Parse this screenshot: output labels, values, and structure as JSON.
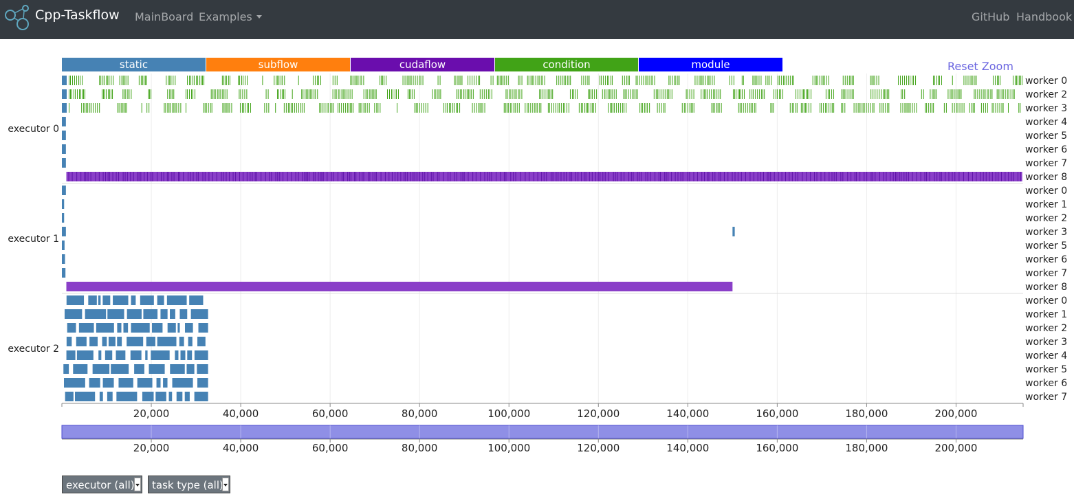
{
  "navbar": {
    "brand": "Cpp-Taskflow",
    "links": [
      "MainBoard",
      "Examples",
      "GitHub",
      "Handbook"
    ],
    "logo_icon": "network-nodes-logo"
  },
  "legend": [
    {
      "label": "static",
      "color": "#4682b4"
    },
    {
      "label": "subflow",
      "color": "#ff7f0e"
    },
    {
      "label": "cudaflow",
      "color": "#6a0dad"
    },
    {
      "label": "condition",
      "color": "#41a317"
    },
    {
      "label": "module",
      "color": "#0000ff"
    }
  ],
  "reset_zoom": "Reset Zoom",
  "controls": {
    "executor_select": "executor (all)",
    "task_type_select": "task type (all)"
  },
  "chart_data": {
    "type": "timeline",
    "x_ticks": [
      "20,000",
      "40,000",
      "60,000",
      "80,000",
      "100,000",
      "120,000",
      "140,000",
      "160,000",
      "180,000",
      "200,000"
    ],
    "xlim": [
      0,
      215000
    ],
    "grid": true,
    "executors": [
      {
        "label": "executor 0",
        "workers": [
          "worker 0",
          "worker 2",
          "worker 3",
          "worker 4",
          "worker 5",
          "worker 6",
          "worker 7",
          "worker 8"
        ],
        "segments": [
          {
            "worker": 0,
            "start": 0,
            "end": 215000,
            "type": "condition",
            "pattern": "dense-thin"
          },
          {
            "worker": 1,
            "start": 0,
            "end": 215000,
            "type": "condition",
            "pattern": "dense-thin"
          },
          {
            "worker": 2,
            "start": 0,
            "end": 215000,
            "type": "condition",
            "pattern": "dense-thin"
          },
          {
            "worker": 3,
            "start": 0,
            "end": 900,
            "type": "static"
          },
          {
            "worker": 4,
            "start": 0,
            "end": 900,
            "type": "static"
          },
          {
            "worker": 5,
            "start": 0,
            "end": 900,
            "type": "static"
          },
          {
            "worker": 6,
            "start": 0,
            "end": 900,
            "type": "static"
          },
          {
            "worker": 7,
            "start": 1000,
            "end": 214800,
            "type": "cudaflow"
          }
        ]
      },
      {
        "label": "executor 1",
        "workers": [
          "worker 0",
          "worker 1",
          "worker 2",
          "worker 3",
          "worker 5",
          "worker 6",
          "worker 7",
          "worker 8"
        ],
        "segments": [
          {
            "worker": 0,
            "start": 0,
            "end": 900,
            "type": "static"
          },
          {
            "worker": 1,
            "start": 0,
            "end": 500,
            "type": "static"
          },
          {
            "worker": 2,
            "start": 0,
            "end": 500,
            "type": "static"
          },
          {
            "worker": 3,
            "start": 0,
            "end": 900,
            "type": "static"
          },
          {
            "worker": 3,
            "start": 150000,
            "end": 150500,
            "type": "static"
          },
          {
            "worker": 4,
            "start": 0,
            "end": 600,
            "type": "static"
          },
          {
            "worker": 5,
            "start": 0,
            "end": 700,
            "type": "static"
          },
          {
            "worker": 6,
            "start": 0,
            "end": 800,
            "type": "static"
          },
          {
            "worker": 7,
            "start": 1000,
            "end": 150000,
            "type": "cudaflow"
          }
        ]
      },
      {
        "label": "executor 2",
        "workers": [
          "worker 0",
          "worker 1",
          "worker 2",
          "worker 3",
          "worker 4",
          "worker 5",
          "worker 6",
          "worker 7"
        ],
        "segments": [
          {
            "worker": 0,
            "start": 0,
            "end": 32700,
            "type": "static",
            "pattern": "blocks"
          },
          {
            "worker": 1,
            "start": 0,
            "end": 32700,
            "type": "static",
            "pattern": "blocks"
          },
          {
            "worker": 2,
            "start": 0,
            "end": 32700,
            "type": "static",
            "pattern": "blocks"
          },
          {
            "worker": 3,
            "start": 0,
            "end": 32700,
            "type": "static",
            "pattern": "blocks"
          },
          {
            "worker": 4,
            "start": 0,
            "end": 32700,
            "type": "static",
            "pattern": "blocks"
          },
          {
            "worker": 5,
            "start": 0,
            "end": 32700,
            "type": "static",
            "pattern": "blocks"
          },
          {
            "worker": 6,
            "start": 0,
            "end": 32700,
            "type": "static",
            "pattern": "blocks"
          },
          {
            "worker": 7,
            "start": 0,
            "end": 32700,
            "type": "static",
            "pattern": "blocks"
          }
        ]
      }
    ]
  }
}
